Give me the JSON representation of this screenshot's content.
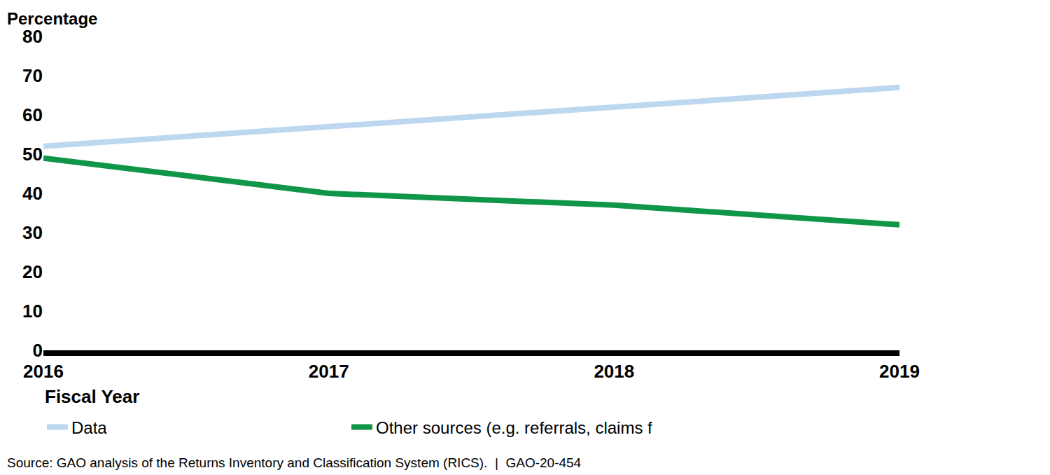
{
  "chart_data": {
    "type": "line",
    "x_label": "Fiscal Year",
    "y_label": "Percentage",
    "x": [
      2016,
      2017,
      2018,
      2019
    ],
    "series": [
      {
        "name": "Data",
        "color": "#bdd7ee",
        "values": [
          52,
          57,
          62,
          67
        ]
      },
      {
        "name": "Other sources (e.g. referrals, claims for refund)",
        "color": "#109648",
        "values": [
          49,
          40,
          37,
          32
        ]
      }
    ],
    "xlim": [
      2016,
      2019
    ],
    "xticks": [
      2016,
      2017,
      2018,
      2019
    ],
    "ylim": [
      0,
      80
    ],
    "yticks": [
      0,
      10,
      20,
      30,
      40,
      50,
      60,
      70,
      80
    ],
    "grid": false,
    "legend": "bottom left",
    "annotations": [
      "Source: GAO analysis of the Returns Inventory and Classification System (RICS).  |  GAO-20-454"
    ]
  }
}
